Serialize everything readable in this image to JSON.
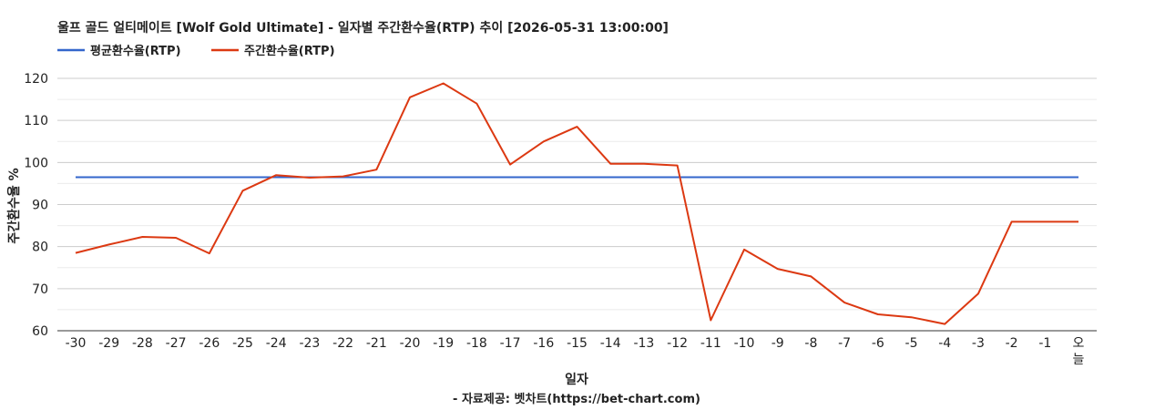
{
  "chart_data": {
    "type": "line",
    "title": "울프 골드 얼티메이트 [Wolf Gold Ultimate] - 일자별 주간환수율(RTP) 추이 [2026-05-31 13:00:00]",
    "xlabel": "일자",
    "ylabel": "주간환수율 %",
    "credit": "- 자료제공: 벳차트(https://bet-chart.com)",
    "categories": [
      "-30",
      "-29",
      "-28",
      "-27",
      "-26",
      "-25",
      "-24",
      "-23",
      "-22",
      "-21",
      "-20",
      "-19",
      "-18",
      "-17",
      "-16",
      "-15",
      "-14",
      "-13",
      "-12",
      "-11",
      "-10",
      "-9",
      "-8",
      "-7",
      "-6",
      "-5",
      "-4",
      "-3",
      "-2",
      "-1",
      "오늘"
    ],
    "ylim": [
      60,
      120
    ],
    "yticks": [
      60,
      70,
      80,
      90,
      100,
      110,
      120
    ],
    "grid": true,
    "legend_position": "top-left",
    "series": [
      {
        "name": "평균환수율(RTP)",
        "color": "#3366cc",
        "values": [
          96.5,
          96.5,
          96.5,
          96.5,
          96.5,
          96.5,
          96.5,
          96.5,
          96.5,
          96.5,
          96.5,
          96.5,
          96.5,
          96.5,
          96.5,
          96.5,
          96.5,
          96.5,
          96.5,
          96.5,
          96.5,
          96.5,
          96.5,
          96.5,
          96.5,
          96.5,
          96.5,
          96.5,
          96.5,
          96.5,
          96.5
        ]
      },
      {
        "name": "주간환수율(RTP)",
        "color": "#dc3912",
        "values": [
          78.5,
          80.5,
          82.3,
          82.1,
          78.4,
          93.3,
          97.0,
          96.4,
          96.7,
          98.3,
          115.5,
          118.8,
          114.0,
          99.5,
          105.0,
          108.5,
          99.7,
          99.7,
          99.3,
          62.5,
          79.3,
          74.7,
          72.9,
          66.7,
          63.9,
          63.2,
          61.6,
          68.8,
          85.9,
          85.9,
          85.9
        ]
      }
    ]
  }
}
